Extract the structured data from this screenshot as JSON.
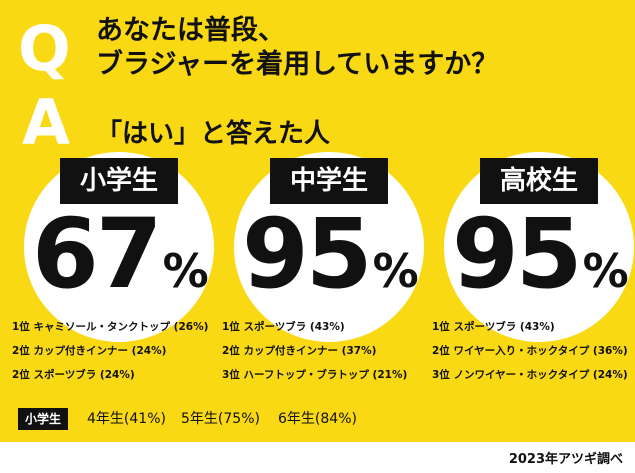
{
  "q_mark": "Q",
  "a_mark": "A",
  "question": [
    "あなたは普段、",
    "ブラジャーを着用していますか？"
  ],
  "answer": "「はい」と答えた人",
  "chart_data": {
    "type": "table",
    "value_unit": "%",
    "groups": [
      {
        "grade": "小学生",
        "value": 67,
        "top_items": [
          {
            "rank": "1位",
            "item": "キャミソール・タンクトップ",
            "value": 26
          },
          {
            "rank": "2位",
            "item": "カップ付きインナー",
            "value": 24
          },
          {
            "rank": "2位",
            "item": "スポーツブラ",
            "value": 24
          }
        ]
      },
      {
        "grade": "中学生",
        "value": 95,
        "top_items": [
          {
            "rank": "1位",
            "item": "スポーツブラ",
            "value": 43
          },
          {
            "rank": "2位",
            "item": "カップ付きインナー",
            "value": 37
          },
          {
            "rank": "3位",
            "item": "ハーフトップ・ブラトップ",
            "value": 21
          }
        ]
      },
      {
        "grade": "高校生",
        "value": 95,
        "top_items": [
          {
            "rank": "1位",
            "item": "スポーツブラ",
            "value": 43
          },
          {
            "rank": "2位",
            "item": "ワイヤー入り・ホックタイプ",
            "value": 36
          },
          {
            "rank": "3位",
            "item": "ノンワイヤー・ホックタイプ",
            "value": 24
          }
        ]
      }
    ],
    "elementary_breakdown": {
      "label": "小学生",
      "items": [
        {
          "grade": "4年生",
          "value": 41
        },
        {
          "grade": "5年生",
          "value": 75
        },
        {
          "grade": "6年生",
          "value": 84
        }
      ]
    }
  },
  "source": "2023年アツギ調べ",
  "colors": {
    "background": "#f9d814",
    "circle": "#ffffff",
    "label_bg": "#111111",
    "text": "#111111"
  }
}
